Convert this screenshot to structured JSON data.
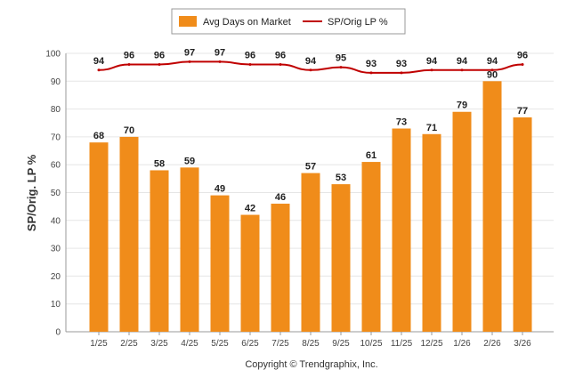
{
  "chart_data": {
    "type": "bar",
    "categories": [
      "1/25",
      "2/25",
      "3/25",
      "4/25",
      "5/25",
      "6/25",
      "7/25",
      "8/25",
      "9/25",
      "10/25",
      "11/25",
      "12/25",
      "1/26",
      "2/26",
      "3/26"
    ],
    "series": [
      {
        "name": "Avg Days on Market",
        "type": "bar",
        "values": [
          68,
          70,
          58,
          59,
          49,
          42,
          46,
          57,
          53,
          61,
          73,
          71,
          79,
          90,
          77
        ]
      },
      {
        "name": "SP/Orig LP %",
        "type": "line",
        "values": [
          94,
          96,
          96,
          97,
          97,
          96,
          96,
          94,
          95,
          93,
          93,
          94,
          94,
          94,
          96
        ]
      }
    ],
    "title": "",
    "xlabel": "",
    "ylabel": "SP/Orig. LP %",
    "ylim": [
      0,
      100
    ],
    "yticks": [
      0,
      10,
      20,
      30,
      40,
      50,
      60,
      70,
      80,
      90,
      100
    ],
    "grid": true,
    "legend_position": "top-center"
  },
  "colors": {
    "bar": "#f08c1a",
    "line": "#c00000",
    "grid": "#e6e6e6",
    "axis": "#999999"
  },
  "copyright": "Copyright © Trendgraphix, Inc."
}
